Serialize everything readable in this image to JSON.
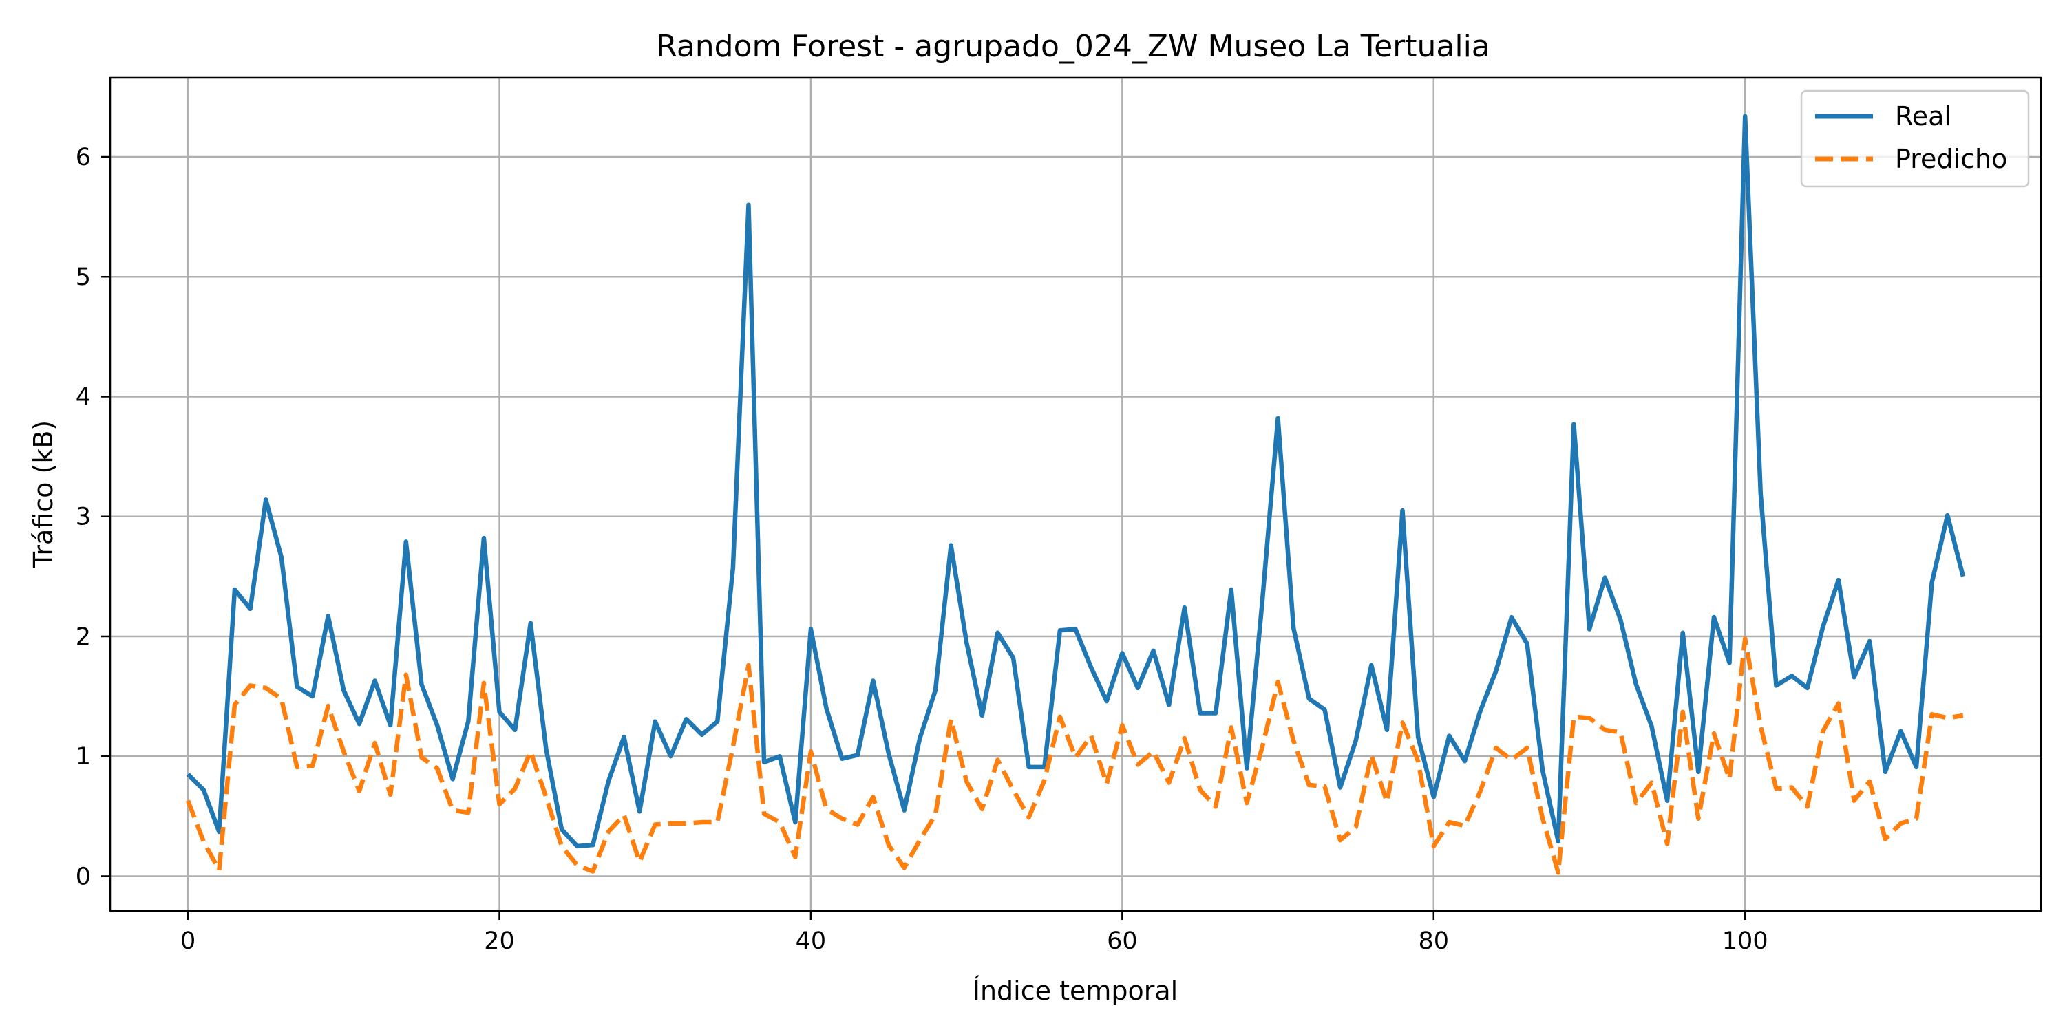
{
  "chart_data": {
    "type": "line",
    "title": "Random Forest - agrupado_024_ZW Museo La Tertualia",
    "xlabel": "Índice temporal",
    "ylabel": "Tráfico (kB)",
    "xlim": [
      -5,
      119
    ],
    "ylim": [
      -0.29,
      6.66
    ],
    "xticks": [
      0,
      20,
      40,
      60,
      80,
      100
    ],
    "yticks": [
      0,
      1,
      2,
      3,
      4,
      5,
      6
    ],
    "grid": true,
    "legend_position": "top-right",
    "x": [
      0,
      1,
      2,
      3,
      4,
      5,
      6,
      7,
      8,
      9,
      10,
      11,
      12,
      13,
      14,
      15,
      16,
      17,
      18,
      19,
      20,
      21,
      22,
      23,
      24,
      25,
      26,
      27,
      28,
      29,
      30,
      31,
      32,
      33,
      34,
      35,
      36,
      37,
      38,
      39,
      40,
      41,
      42,
      43,
      44,
      45,
      46,
      47,
      48,
      49,
      50,
      51,
      52,
      53,
      54,
      55,
      56,
      57,
      58,
      59,
      60,
      61,
      62,
      63,
      64,
      65,
      66,
      67,
      68,
      69,
      70,
      71,
      72,
      73,
      74,
      75,
      76,
      77,
      78,
      79,
      80,
      81,
      82,
      83,
      84,
      85,
      86,
      87,
      88,
      89,
      90,
      91,
      92,
      93,
      94,
      95,
      96,
      97,
      98,
      99,
      100,
      101,
      102,
      103,
      104,
      105,
      106,
      107,
      108,
      109,
      110,
      111,
      112,
      113,
      114
    ],
    "series": [
      {
        "name": "Real",
        "color": "#1f77b4",
        "style": "solid",
        "values": [
          0.85,
          0.72,
          0.37,
          2.39,
          2.23,
          3.14,
          2.66,
          1.58,
          1.5,
          2.17,
          1.55,
          1.27,
          1.63,
          1.26,
          2.79,
          1.6,
          1.26,
          0.81,
          1.29,
          2.82,
          1.37,
          1.22,
          2.11,
          1.06,
          0.39,
          0.25,
          0.26,
          0.79,
          1.16,
          0.54,
          1.29,
          1.0,
          1.31,
          1.18,
          1.29,
          2.57,
          5.6,
          0.95,
          1.0,
          0.45,
          2.06,
          1.4,
          0.98,
          1.01,
          1.63,
          1.02,
          0.55,
          1.15,
          1.55,
          2.76,
          1.95,
          1.34,
          2.03,
          1.82,
          0.91,
          0.91,
          2.05,
          2.06,
          1.74,
          1.46,
          1.86,
          1.57,
          1.88,
          1.43,
          2.24,
          1.36,
          1.36,
          2.39,
          0.9,
          2.3,
          3.82,
          2.07,
          1.48,
          1.39,
          0.74,
          1.13,
          1.76,
          1.22,
          3.05,
          1.16,
          0.66,
          1.17,
          0.96,
          1.38,
          1.71,
          2.16,
          1.94,
          0.88,
          0.29,
          3.77,
          2.06,
          2.49,
          2.14,
          1.6,
          1.25,
          0.63,
          2.03,
          0.87,
          2.16,
          1.78,
          6.34,
          3.19,
          1.59,
          1.67,
          1.57,
          2.08,
          2.47,
          1.66,
          1.96,
          0.87,
          1.21,
          0.91,
          2.45,
          3.01,
          2.5
        ]
      },
      {
        "name": "Predicho",
        "color": "#ff7f0e",
        "style": "dashed",
        "values": [
          0.63,
          0.29,
          0.05,
          1.43,
          1.59,
          1.57,
          1.48,
          0.91,
          0.92,
          1.42,
          1.04,
          0.71,
          1.11,
          0.68,
          1.68,
          0.99,
          0.9,
          0.55,
          0.53,
          1.61,
          0.6,
          0.73,
          1.04,
          0.66,
          0.25,
          0.09,
          0.04,
          0.37,
          0.51,
          0.12,
          0.43,
          0.44,
          0.44,
          0.45,
          0.45,
          1.08,
          1.76,
          0.52,
          0.45,
          0.16,
          1.04,
          0.56,
          0.48,
          0.43,
          0.66,
          0.26,
          0.07,
          0.3,
          0.51,
          1.31,
          0.79,
          0.56,
          0.97,
          0.72,
          0.49,
          0.8,
          1.33,
          0.99,
          1.17,
          0.77,
          1.26,
          0.93,
          1.04,
          0.78,
          1.15,
          0.72,
          0.58,
          1.24,
          0.61,
          1.08,
          1.62,
          1.13,
          0.76,
          0.75,
          0.3,
          0.41,
          1.01,
          0.62,
          1.28,
          0.96,
          0.25,
          0.45,
          0.42,
          0.71,
          1.07,
          0.97,
          1.07,
          0.48,
          0.03,
          1.33,
          1.32,
          1.22,
          1.2,
          0.61,
          0.78,
          0.27,
          1.37,
          0.48,
          1.19,
          0.81,
          1.98,
          1.25,
          0.73,
          0.74,
          0.58,
          1.21,
          1.44,
          0.63,
          0.79,
          0.31,
          0.44,
          0.48,
          1.35,
          1.32,
          1.34
        ]
      }
    ]
  }
}
